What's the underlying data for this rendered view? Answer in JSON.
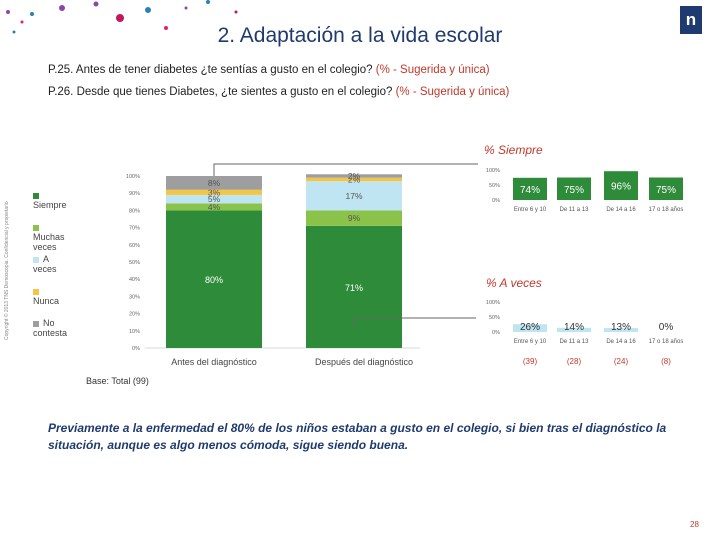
{
  "title": "2. Adaptación a la vida escolar",
  "question1": {
    "text": "P.25. Antes de tener diabetes ¿te sentías a gusto en el colegio?",
    "note": "(% - Sugerida y única)"
  },
  "question2": {
    "text": "P.26. Desde que tienes Diabetes, ¿te sientes a gusto en el colegio?",
    "note": "(% - Sugerida y única)"
  },
  "legend": [
    {
      "label": "Siempre",
      "color": "#2e8b3a"
    },
    {
      "label": "Muchas veces",
      "color": "#8bc34a"
    },
    {
      "label": "A veces",
      "color": "#bfe4f2"
    },
    {
      "label": "Nunca",
      "color": "#f4c542"
    },
    {
      "label": "No contesta",
      "color": "#9e9e9e"
    }
  ],
  "base": "Base: Total (99)",
  "conclusion": "Previamente a la enfermedad el 80% de los niños estaban a gusto en el colegio, si bien tras el diagnóstico la situación, aunque es algo menos cómoda, sigue siendo buena.",
  "page_number": "28",
  "copyright": "Copyright © 2013 TNS Demoscopia. Confidencial y propietario",
  "chart_data": [
    {
      "type": "bar",
      "stacked": true,
      "categories": [
        "Antes del diagnóstico",
        "Después del diagnóstico"
      ],
      "ylim": [
        0,
        100
      ],
      "yticks": [
        "0%",
        "10%",
        "20%",
        "30%",
        "40%",
        "50%",
        "60%",
        "70%",
        "80%",
        "90%",
        "100%"
      ],
      "series": [
        {
          "name": "Siempre",
          "values": [
            80,
            71
          ],
          "labels": [
            "80%",
            "71%"
          ]
        },
        {
          "name": "Muchas veces",
          "values": [
            4,
            9
          ],
          "labels": [
            "4%",
            "9%"
          ]
        },
        {
          "name": "A veces",
          "values": [
            5,
            17
          ],
          "labels": [
            "5%",
            "17%"
          ]
        },
        {
          "name": "Nunca",
          "values": [
            3,
            2
          ],
          "labels": [
            "3%",
            "2%"
          ]
        },
        {
          "name": "No contesta",
          "values": [
            8,
            2
          ],
          "labels": [
            "8%",
            "2%"
          ]
        }
      ]
    },
    {
      "type": "bar",
      "title": "% Siempre",
      "yticks": [
        "0%",
        "50%",
        "100%"
      ],
      "categories": [
        "Entre 6 y 10",
        "De 11 a 13",
        "De 14 a 16",
        "17 o 18 años"
      ],
      "values": [
        74,
        75,
        96,
        75
      ],
      "labels": [
        "74%",
        "75%",
        "96%",
        "75%"
      ]
    },
    {
      "type": "bar",
      "title": "% A veces",
      "yticks": [
        "0%",
        "50%",
        "100%"
      ],
      "categories": [
        "Entre 6 y 10",
        "De 11 a 13",
        "De 14 a 16",
        "17 o 18 años"
      ],
      "values": [
        26,
        14,
        13,
        0
      ],
      "labels": [
        "26%",
        "14%",
        "13%",
        "0%"
      ],
      "bases": [
        "(39)",
        "(28)",
        "(24)",
        "(8)"
      ]
    }
  ]
}
